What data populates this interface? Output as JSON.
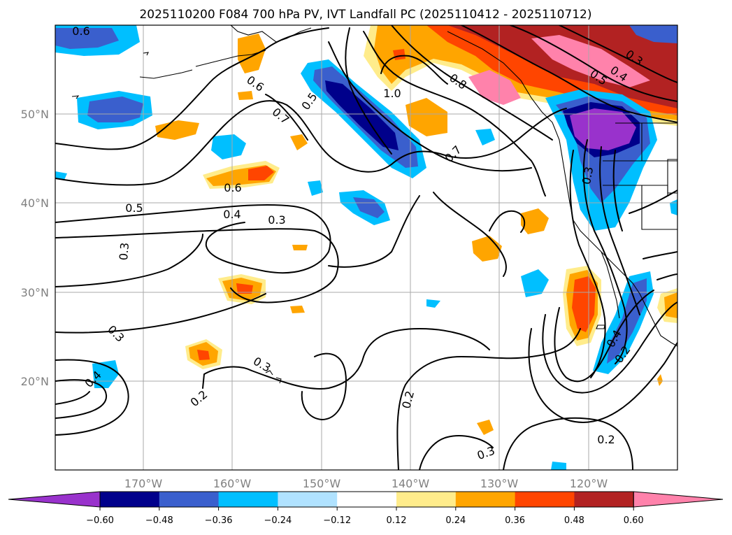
{
  "title": "2025110200 F084 700 hPa PV, IVT Landfall PC (2025110412 - 2025110712)",
  "lon_labels": [
    "170°W",
    "160°W",
    "150°W",
    "140°W",
    "130°W",
    "120°W"
  ],
  "lat_labels": [
    "50°N",
    "40°N",
    "30°N",
    "20°N"
  ],
  "colorbar": {
    "ticks": [
      "−0.60",
      "−0.48",
      "−0.36",
      "−0.24",
      "−0.12",
      "0.12",
      "0.24",
      "0.36",
      "0.48",
      "0.60"
    ],
    "colors": [
      "#9932cc",
      "#00008b",
      "#3a5fcd",
      "#00bfff",
      "#b0e2ff",
      "#ffffff",
      "#ffec8b",
      "#ffa500",
      "#ff4500",
      "#b22222",
      "#ff82ab"
    ]
  },
  "contour_labels": [
    "0.6",
    "0.6",
    "0.5",
    "1.0",
    "0.8",
    "0.5",
    "0.4",
    "0.3",
    "0.7",
    "0.7",
    "0.6",
    "0.5",
    "0.4",
    "0.3",
    "0.3",
    "0.3",
    "0.4",
    "0.3",
    "0.2",
    "0.2",
    "0.3",
    "0.2",
    "0.4",
    "0.2",
    "0.3"
  ]
}
